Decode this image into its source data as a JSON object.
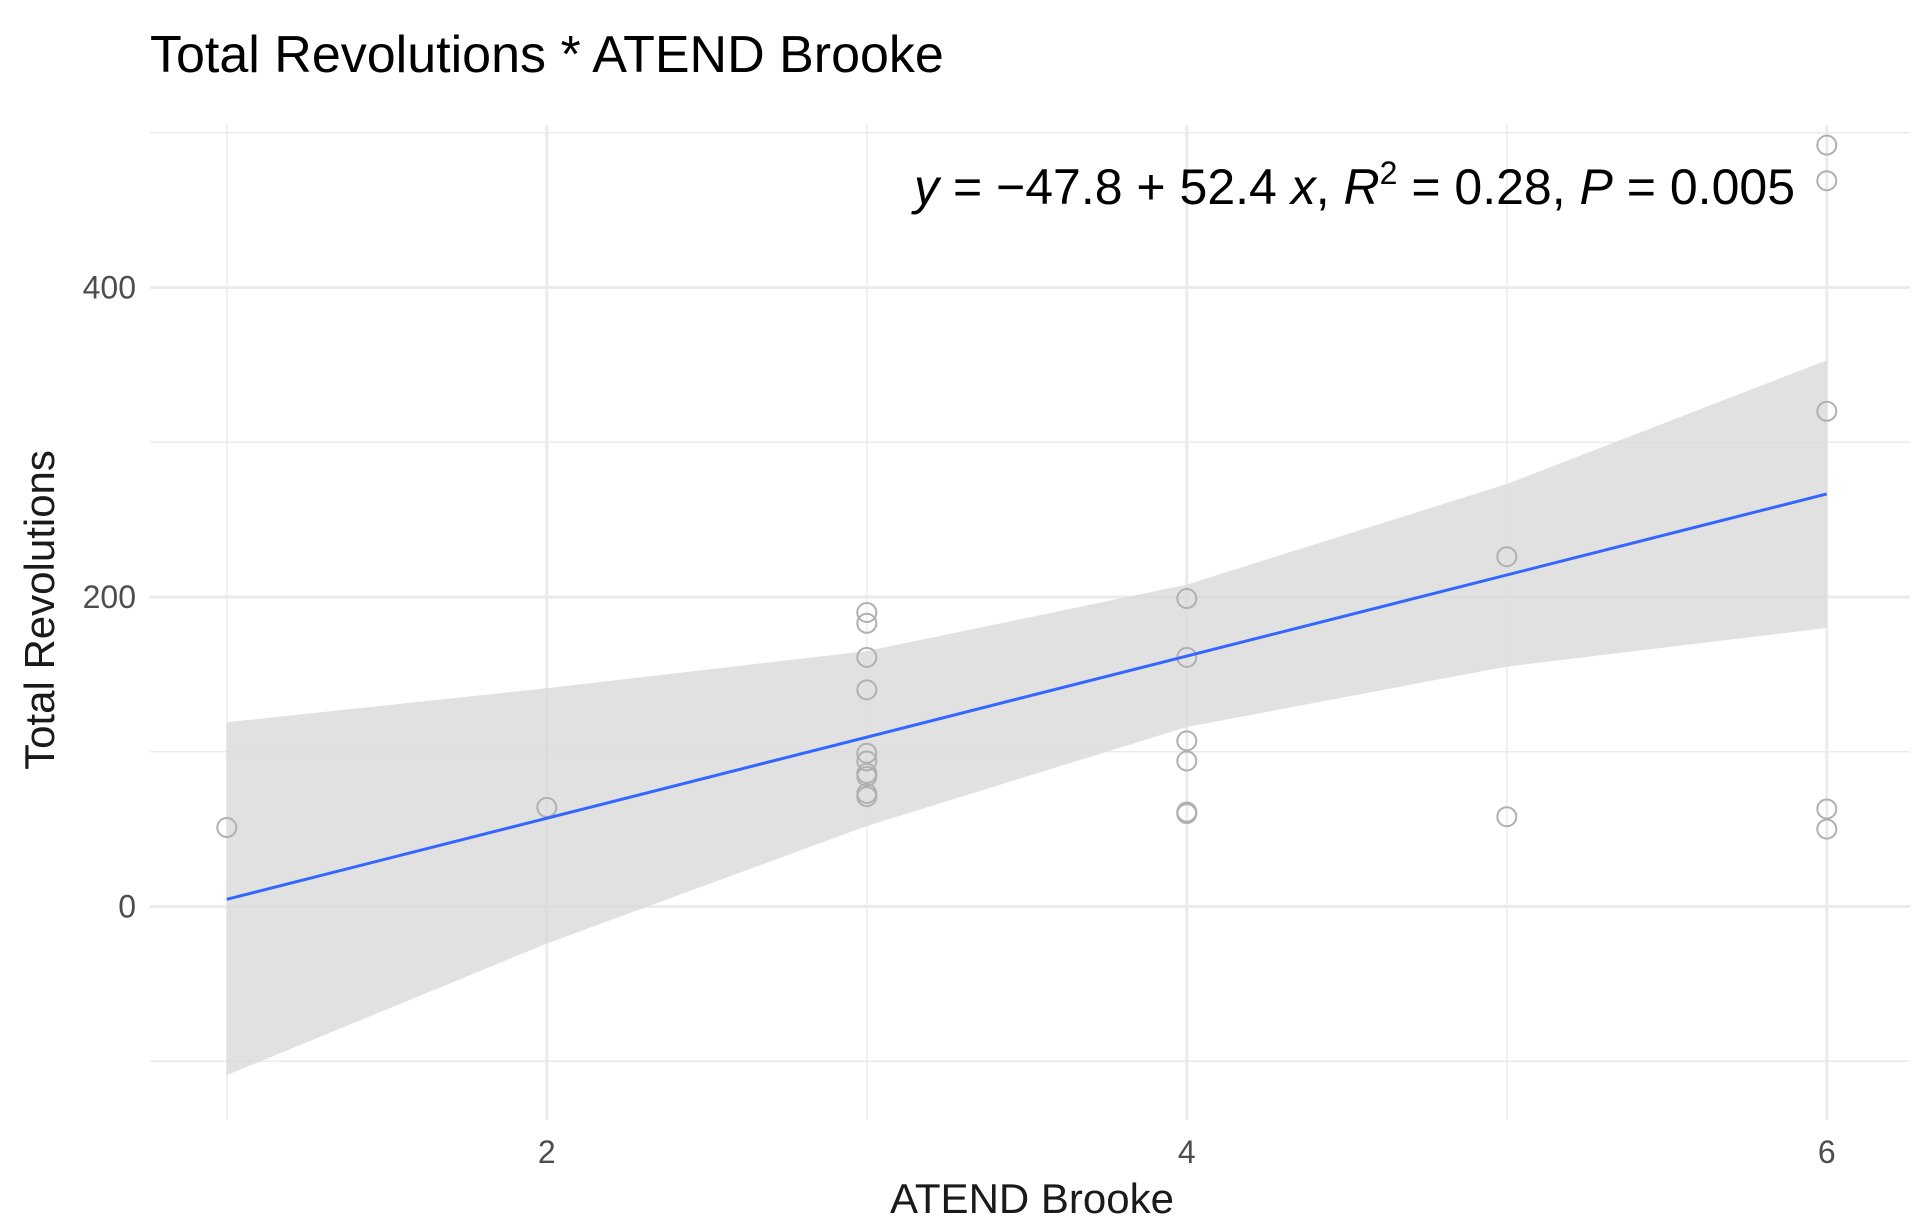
{
  "chart_data": {
    "type": "scatter",
    "title": "Total Revolutions * ATEND Brooke",
    "xlabel": "ATEND Brooke",
    "ylabel": "Total Revolutions",
    "xlim": [
      0.76,
      6.26
    ],
    "ylim": [
      -138,
      505
    ],
    "x_ticks": [
      2,
      4,
      6
    ],
    "x_tick_labels": [
      "2",
      "4",
      "6"
    ],
    "x_minor_gridlines": [
      1,
      3,
      5
    ],
    "y_ticks": [
      0,
      200,
      400
    ],
    "y_tick_labels": [
      "0",
      "200",
      "400"
    ],
    "y_minor_gridlines": [
      -100,
      100,
      300,
      500
    ],
    "grid": true,
    "legend": "none",
    "colors": {
      "points": "#b0b0b0",
      "fit_line": "#3366ff",
      "confidence_band": "#d9d9d9",
      "grid": "#ebebeb"
    },
    "series": [
      {
        "x": [
          1,
          2,
          3,
          3,
          3,
          3,
          3,
          3,
          3,
          3,
          3,
          3,
          4,
          4,
          4,
          4,
          4,
          4,
          5,
          5,
          6,
          6,
          6,
          6,
          6
        ],
        "y": [
          51,
          64,
          190,
          183,
          161,
          140,
          99,
          94,
          86,
          84,
          73,
          71,
          199,
          161,
          107,
          94,
          61,
          60,
          226,
          58,
          492,
          469,
          320,
          63,
          50
        ]
      }
    ],
    "fit": {
      "intercept": -47.8,
      "slope": 52.4,
      "x_range": [
        1,
        6
      ],
      "ci_band": [
        {
          "x": 1,
          "lo": -109,
          "hi": 119
        },
        {
          "x": 2,
          "lo": -24,
          "hi": 141
        },
        {
          "x": 3,
          "lo": 52,
          "hi": 165
        },
        {
          "x": 4,
          "lo": 116,
          "hi": 208
        },
        {
          "x": 5,
          "lo": 155,
          "hi": 273
        },
        {
          "x": 6,
          "lo": 180,
          "hi": 353
        }
      ]
    },
    "annotation": {
      "y_var": "y",
      "eq_part": " = −47.8 + 52.4 ",
      "x_var": "x",
      "r_part": ", ",
      "r_var": "R",
      "r_sup": "2",
      "r_val": " = 0.28, ",
      "p_var": "P",
      "p_val": " = 0.005"
    }
  }
}
